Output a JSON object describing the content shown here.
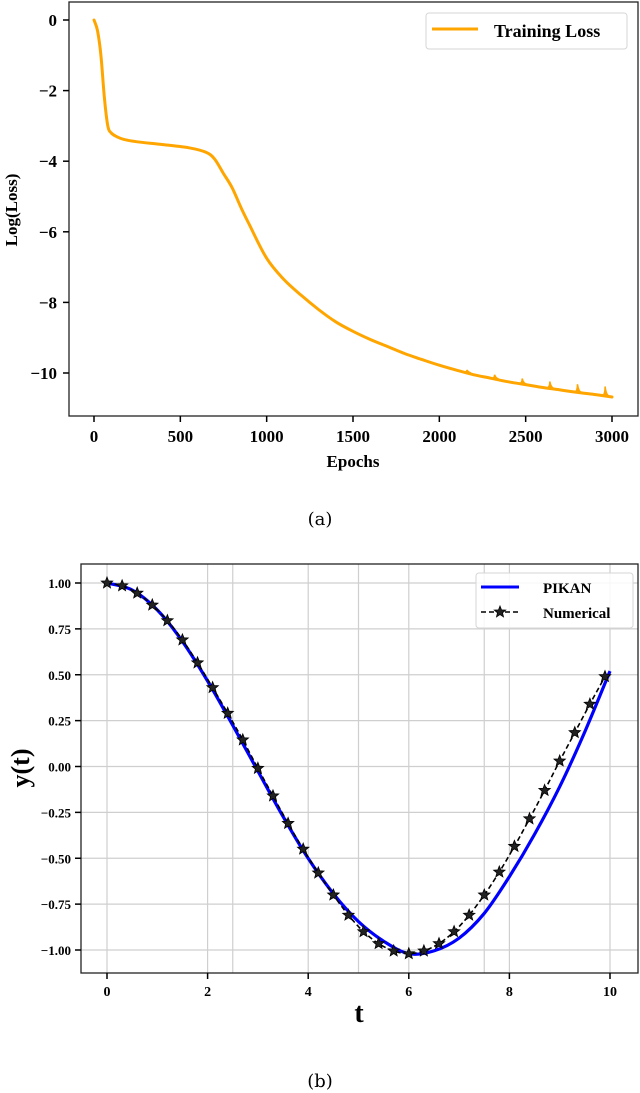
{
  "chart_data": [
    {
      "type": "line",
      "panel_label": "(a)",
      "title": "",
      "xlabel": "Epochs",
      "ylabel": "Log(Loss)",
      "xlim": [
        -150,
        3150
      ],
      "ylim": [
        -11.4,
        0.6
      ],
      "xticks": [
        0,
        500,
        1000,
        1500,
        2000,
        2500,
        3000
      ],
      "yticks": [
        0,
        -2,
        -4,
        -6,
        -8,
        -10
      ],
      "ytick_labels": [
        "0",
        "−2",
        "−4",
        "−6",
        "−8",
        "−10"
      ],
      "grid": false,
      "legend_position": "upper right",
      "series": [
        {
          "name": "Training Loss",
          "color": "#FFA500",
          "x": [
            0,
            20,
            40,
            60,
            80,
            100,
            130,
            170,
            250,
            400,
            550,
            650,
            700,
            750,
            800,
            850,
            900,
            1000,
            1100,
            1200,
            1300,
            1400,
            1500,
            1600,
            1700,
            1800,
            1900,
            2000,
            2100,
            2200,
            2300,
            2400,
            2500,
            2600,
            2700,
            2800,
            2900,
            3000
          ],
          "values": [
            0,
            -0.3,
            -1.0,
            -2.2,
            -3.0,
            -3.2,
            -3.3,
            -3.38,
            -3.45,
            -3.53,
            -3.62,
            -3.75,
            -3.95,
            -4.35,
            -4.75,
            -5.3,
            -5.8,
            -6.75,
            -7.35,
            -7.8,
            -8.2,
            -8.55,
            -8.82,
            -9.05,
            -9.25,
            -9.45,
            -9.62,
            -9.78,
            -9.92,
            -10.05,
            -10.15,
            -10.25,
            -10.33,
            -10.41,
            -10.48,
            -10.55,
            -10.61,
            -10.68
          ]
        }
      ],
      "spikes_at_epochs": [
        2160,
        2320,
        2480,
        2640,
        2800,
        2960
      ]
    },
    {
      "type": "line",
      "panel_label": "(b)",
      "title": "",
      "xlabel": "t",
      "ylabel": "y(t)",
      "xlim": [
        -0.5,
        10.5
      ],
      "ylim": [
        -1.12,
        1.09
      ],
      "xticks": [
        0,
        2,
        4,
        6,
        8,
        10
      ],
      "yticks": [
        1.0,
        0.75,
        0.5,
        0.25,
        0.0,
        -0.25,
        -0.5,
        -0.75,
        -1.0
      ],
      "ytick_labels": [
        "1.00",
        "0.75",
        "0.50",
        "0.25",
        "0.00",
        "−0.25",
        "−0.50",
        "−0.75",
        "−1.00"
      ],
      "grid": true,
      "legend_position": "upper right",
      "series": [
        {
          "name": "PIKAN",
          "style": "solid",
          "color": "#0000FF",
          "x": [
            0,
            0.5,
            1,
            1.5,
            2,
            2.5,
            3,
            3.5,
            4,
            4.5,
            5,
            5.5,
            6,
            6.5,
            7,
            7.5,
            8,
            8.5,
            9,
            9.5,
            10
          ],
          "values": [
            1.0,
            0.962,
            0.853,
            0.682,
            0.466,
            0.224,
            -0.025,
            -0.273,
            -0.501,
            -0.693,
            -0.845,
            -0.952,
            -1.02,
            -1.005,
            -0.935,
            -0.8,
            -0.6,
            -0.37,
            -0.11,
            0.19,
            0.52
          ]
        },
        {
          "name": "Numerical",
          "style": "dashed",
          "marker": "star",
          "color": "#000000",
          "x": [
            0,
            0.3,
            0.6,
            0.9,
            1.2,
            1.5,
            1.8,
            2.1,
            2.4,
            2.7,
            3.0,
            3.3,
            3.6,
            3.9,
            4.2,
            4.5,
            4.8,
            5.1,
            5.4,
            5.7,
            6.0,
            6.3,
            6.6,
            6.9,
            7.2,
            7.5,
            7.8,
            8.1,
            8.4,
            8.7,
            9.0,
            9.3,
            9.6,
            9.9
          ],
          "values": [
            1.0,
            0.985,
            0.945,
            0.88,
            0.795,
            0.69,
            0.565,
            0.43,
            0.29,
            0.145,
            -0.01,
            -0.16,
            -0.31,
            -0.45,
            -0.58,
            -0.7,
            -0.81,
            -0.9,
            -0.965,
            -1.005,
            -1.02,
            -1.005,
            -0.965,
            -0.9,
            -0.81,
            -0.7,
            -0.575,
            -0.435,
            -0.285,
            -0.13,
            0.03,
            0.185,
            0.34,
            0.49
          ]
        }
      ]
    }
  ],
  "figure": {
    "caption_a": "(a)",
    "caption_b": "(b)"
  }
}
